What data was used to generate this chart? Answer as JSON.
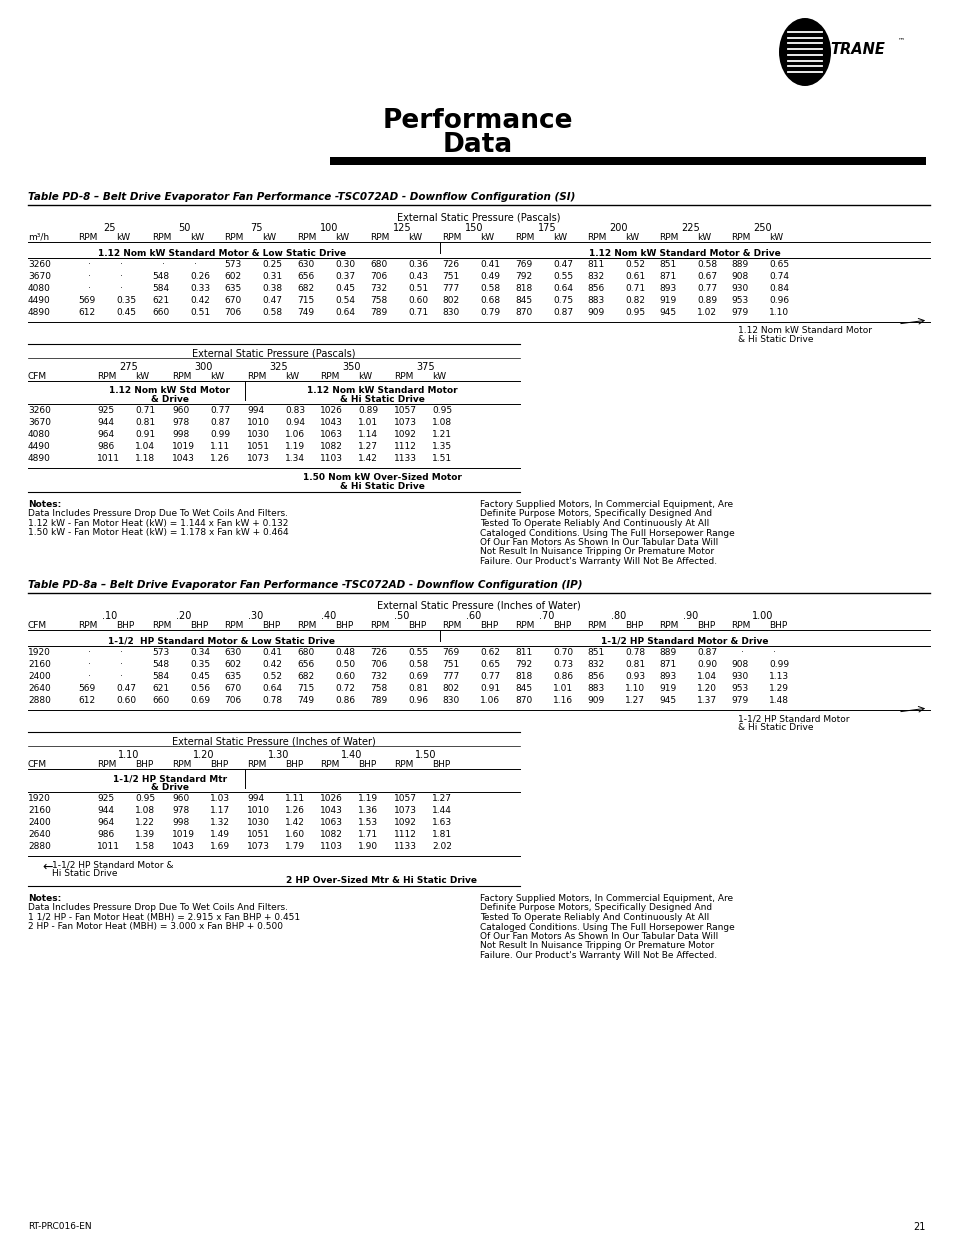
{
  "title_line1": "Performance",
  "title_line2": "Data",
  "table1_title": "Table PD-8 – Belt Drive Evaporator Fan Performance -TSC072AD - Downflow Configuration (SI)",
  "table2_title": "Table PD-8a – Belt Drive Evaporator Fan Performance -TSC072AD - Downflow Configuration (IP)",
  "page_number": "21",
  "doc_ref": "RT-PRC016-EN",
  "bg_color": "#ffffff",
  "table1_esp_label": "External Static Pressure (Pascals)",
  "table1_pressures_top": [
    "25",
    "50",
    "75",
    "100",
    "125",
    "150",
    "175",
    "200",
    "225",
    "250"
  ],
  "table1_motor1_label": "1.12 Nom kW Standard Motor & Low Static Drive",
  "table1_motor2_label": "1.12 Nom kW Standard Motor & Drive",
  "table1_rows_top": [
    [
      "3260",
      "-",
      "-",
      "-",
      "-",
      "573",
      "0.25",
      "630",
      "0.30",
      "680",
      "0.36",
      "726",
      "0.41",
      "769",
      "0.47",
      "811",
      "0.52",
      "851",
      "0.58",
      "889",
      "0.65"
    ],
    [
      "3670",
      "-",
      "-",
      "548",
      "0.26",
      "602",
      "0.31",
      "656",
      "0.37",
      "706",
      "0.43",
      "751",
      "0.49",
      "792",
      "0.55",
      "832",
      "0.61",
      "871",
      "0.67",
      "908",
      "0.74"
    ],
    [
      "4080",
      "-",
      "-",
      "584",
      "0.33",
      "635",
      "0.38",
      "682",
      "0.45",
      "732",
      "0.51",
      "777",
      "0.58",
      "818",
      "0.64",
      "856",
      "0.71",
      "893",
      "0.77",
      "930",
      "0.84"
    ],
    [
      "4490",
      "569",
      "0.35",
      "621",
      "0.42",
      "670",
      "0.47",
      "715",
      "0.54",
      "758",
      "0.60",
      "802",
      "0.68",
      "845",
      "0.75",
      "883",
      "0.82",
      "919",
      "0.89",
      "953",
      "0.96"
    ],
    [
      "4890",
      "612",
      "0.45",
      "660",
      "0.51",
      "706",
      "0.58",
      "749",
      "0.64",
      "789",
      "0.71",
      "830",
      "0.79",
      "870",
      "0.87",
      "909",
      "0.95",
      "945",
      "1.02",
      "979",
      "1.10"
    ]
  ],
  "table1_annot1": "1.12 Nom kW Standard Motor",
  "table1_annot2": "& Hi Static Drive",
  "table1_esp_label2": "External Static Pressure (Pascals)",
  "table1_pressures_bot": [
    "275",
    "300",
    "325",
    "350",
    "375"
  ],
  "table1_motor3a": "1.12 Nom kW Std Motor",
  "table1_motor3b": "& Drive",
  "table1_motor4a": "1.12 Nom kW Standard Motor",
  "table1_motor4b": "& Hi Static Drive",
  "table1_rows_bot": [
    [
      "3260",
      "925",
      "0.71",
      "960",
      "0.77",
      "994",
      "0.83",
      "1026",
      "0.89",
      "1057",
      "0.95"
    ],
    [
      "3670",
      "944",
      "0.81",
      "978",
      "0.87",
      "1010",
      "0.94",
      "1043",
      "1.01",
      "1073",
      "1.08"
    ],
    [
      "4080",
      "964",
      "0.91",
      "998",
      "0.99",
      "1030",
      "1.06",
      "1063",
      "1.14",
      "1092",
      "1.21"
    ],
    [
      "4490",
      "986",
      "1.04",
      "1019",
      "1.11",
      "1051",
      "1.19",
      "1082",
      "1.27",
      "1112",
      "1.35"
    ],
    [
      "4890",
      "1011",
      "1.18",
      "1043",
      "1.26",
      "1073",
      "1.34",
      "1103",
      "1.42",
      "1133",
      "1.51"
    ]
  ],
  "table1_annot3": "1.50 Nom kW Over-Sized Motor",
  "table1_annot4": "& Hi Static Drive",
  "table1_notes_left": [
    "Notes:",
    "Data Includes Pressure Drop Due To Wet Coils And Filters.",
    "1.12 kW - Fan Motor Heat (kW) = 1.144 x Fan kW + 0.132",
    "1.50 kW - Fan Motor Heat (kW) = 1.178 x Fan kW + 0.464"
  ],
  "table1_notes_right": [
    "Factory Supplied Motors, In Commercial Equipment, Are",
    "Definite Purpose Motors, Specifically Designed And",
    "Tested To Operate Reliably And Continuously At All",
    "Cataloged Conditions. Using The Full Horsepower Range",
    "Of Our Fan Motors As Shown In Our Tabular Data Will",
    "Not Result In Nuisance Tripping Or Premature Motor",
    "Failure. Our Product's Warranty Will Not Be Affected."
  ],
  "table2_esp_label": "External Static Pressure (Inches of Water)",
  "table2_pressures_top": [
    ".10",
    ".20",
    ".30",
    ".40",
    ".50",
    ".60",
    ".70",
    ".80",
    ".90",
    "1.00"
  ],
  "table2_motor1_label": "1-1/2  HP Standard Motor & Low Static Drive",
  "table2_motor2_label": "1-1/2 HP Standard Motor & Drive",
  "table2_rows_top": [
    [
      "1920",
      "-",
      "-",
      "573",
      "0.34",
      "630",
      "0.41",
      "680",
      "0.48",
      "726",
      "0.55",
      "769",
      "0.62",
      "811",
      "0.70",
      "851",
      "0.78",
      "889",
      "0.87",
      "-",
      "-"
    ],
    [
      "2160",
      "-",
      "-",
      "548",
      "0.35",
      "602",
      "0.42",
      "656",
      "0.50",
      "706",
      "0.58",
      "751",
      "0.65",
      "792",
      "0.73",
      "832",
      "0.81",
      "871",
      "0.90",
      "908",
      "0.99"
    ],
    [
      "2400",
      "-",
      "-",
      "584",
      "0.45",
      "635",
      "0.52",
      "682",
      "0.60",
      "732",
      "0.69",
      "777",
      "0.77",
      "818",
      "0.86",
      "856",
      "0.93",
      "893",
      "1.04",
      "930",
      "1.13"
    ],
    [
      "2640",
      "569",
      "0.47",
      "621",
      "0.56",
      "670",
      "0.64",
      "715",
      "0.72",
      "758",
      "0.81",
      "802",
      "0.91",
      "845",
      "1.01",
      "883",
      "1.10",
      "919",
      "1.20",
      "953",
      "1.29"
    ],
    [
      "2880",
      "612",
      "0.60",
      "660",
      "0.69",
      "706",
      "0.78",
      "749",
      "0.86",
      "789",
      "0.96",
      "830",
      "1.06",
      "870",
      "1.16",
      "909",
      "1.27",
      "945",
      "1.37",
      "979",
      "1.48"
    ]
  ],
  "table2_annot1": "1-1/2 HP Standard Motor",
  "table2_annot2": "& Hi Static Drive",
  "table2_esp_label2": "External Static Pressure (Inches of Water)",
  "table2_pressures_bot": [
    "1.10",
    "1.20",
    "1.30",
    "1.40",
    "1.50"
  ],
  "table2_motor3a": "1-1/2 HP Standard Mtr",
  "table2_motor3b": "& Drive",
  "table2_rows_bot": [
    [
      "1920",
      "925",
      "0.95",
      "960",
      "1.03",
      "994",
      "1.11",
      "1026",
      "1.19",
      "1057",
      "1.27"
    ],
    [
      "2160",
      "944",
      "1.08",
      "978",
      "1.17",
      "1010",
      "1.26",
      "1043",
      "1.36",
      "1073",
      "1.44"
    ],
    [
      "2400",
      "964",
      "1.22",
      "998",
      "1.32",
      "1030",
      "1.42",
      "1063",
      "1.53",
      "1092",
      "1.63"
    ],
    [
      "2640",
      "986",
      "1.39",
      "1019",
      "1.49",
      "1051",
      "1.60",
      "1082",
      "1.71",
      "1112",
      "1.81"
    ],
    [
      "2880",
      "1011",
      "1.58",
      "1043",
      "1.69",
      "1073",
      "1.79",
      "1103",
      "1.90",
      "1133",
      "2.02"
    ]
  ],
  "table2_annot3": "1-1/2 HP Standard Motor &",
  "table2_annot4": "Hi Static Drive",
  "table2_annot5": "2 HP Over-Sized Mtr & Hi Static Drive",
  "table2_notes_left": [
    "Notes:",
    "Data Includes Pressure Drop Due To Wet Coils And Filters.",
    "1 1/2 HP - Fan Motor Heat (MBH) = 2.915 x Fan BHP + 0.451",
    "2 HP - Fan Motor Heat (MBH) = 3.000 x Fan BHP + 0.500"
  ],
  "table2_notes_right": [
    "Factory Supplied Motors, In Commercial Equipment, Are",
    "Definite Purpose Motors, Specifically Designed And",
    "Tested To Operate Reliably And Continuously At All",
    "Cataloged Conditions. Using The Full Horsepower Range",
    "Of Our Fan Motors As Shown In Our Tabular Data Will",
    "Not Result In Nuisance Tripping Or Premature Motor",
    "Failure. Our Product's Warranty Will Not Be Affected."
  ]
}
